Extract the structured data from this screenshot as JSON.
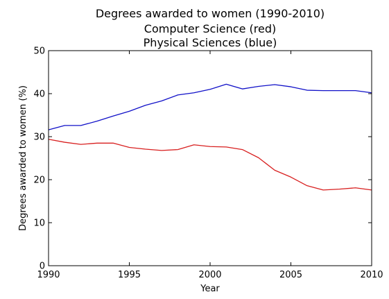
{
  "chart_data": {
    "type": "line",
    "title_lines": [
      "Degrees awarded to women (1990-2010)",
      "Computer Science (red)",
      "Physical Sciences (blue)"
    ],
    "xlabel": "Year",
    "ylabel": "Degrees awarded to women (%)",
    "xlim": [
      1990,
      2010
    ],
    "ylim": [
      0,
      50
    ],
    "xticks": [
      1990,
      1995,
      2000,
      2005,
      2010
    ],
    "yticks": [
      0,
      10,
      20,
      30,
      40,
      50
    ],
    "grid": false,
    "x": [
      1990,
      1991,
      1992,
      1993,
      1994,
      1995,
      1996,
      1997,
      1998,
      1999,
      2000,
      2001,
      2002,
      2003,
      2004,
      2005,
      2006,
      2007,
      2008,
      2009,
      2010
    ],
    "series": [
      {
        "color": "#d81f1f",
        "values": [
          29.4,
          28.7,
          28.2,
          28.5,
          28.5,
          27.5,
          27.1,
          26.8,
          27.0,
          28.1,
          27.7,
          27.6,
          27.0,
          25.1,
          22.2,
          20.6,
          18.6,
          17.6,
          17.8,
          18.1,
          17.6
        ]
      },
      {
        "color": "#1010c8",
        "values": [
          31.6,
          32.6,
          32.6,
          33.6,
          34.8,
          35.9,
          37.3,
          38.3,
          39.7,
          40.2,
          41.0,
          42.2,
          41.1,
          41.7,
          42.1,
          41.6,
          40.8,
          40.7,
          40.7,
          40.7,
          40.2
        ]
      }
    ]
  }
}
